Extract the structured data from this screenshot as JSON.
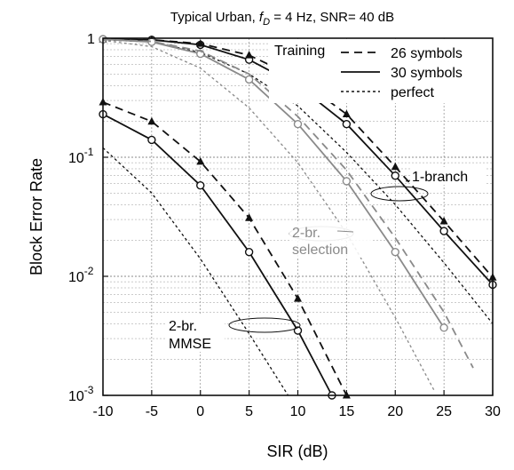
{
  "chart_data": {
    "type": "line",
    "title_parts": {
      "prefix": "Typical Urban, ",
      "f": "f",
      "sub": "D",
      "suffix": " = 4 Hz, SNR= 40 dB"
    },
    "xlabel": "SIR (dB)",
    "ylabel": "Block Error Rate",
    "xlim": [
      -10,
      30
    ],
    "ylim": [
      0.001,
      1
    ],
    "yscale": "log",
    "grid": true,
    "xticks": [
      -10,
      -5,
      0,
      5,
      10,
      15,
      20,
      25,
      30
    ],
    "xtick_labels": [
      "-10",
      "-5",
      "0",
      "5",
      "10",
      "15",
      "20",
      "25",
      "30"
    ],
    "yticks": [
      {
        "value": 1,
        "base": "1",
        "exp": ""
      },
      {
        "value": 0.1,
        "base": "10",
        "exp": "-1"
      },
      {
        "value": 0.01,
        "base": "10",
        "exp": "-2"
      },
      {
        "value": 0.001,
        "base": "10",
        "exp": "-3"
      }
    ],
    "legend": {
      "position": "top-right",
      "header": "Training",
      "entries": [
        {
          "label": "26 symbols",
          "style": "dashed"
        },
        {
          "label": "30 symbols",
          "style": "solid"
        },
        {
          "label": "perfect",
          "style": "dotted"
        }
      ]
    },
    "annotations": [
      {
        "text": "1-branch",
        "color": "#111111"
      },
      {
        "lines": [
          "2-br.",
          "selection"
        ],
        "color": "#8a8a8a"
      },
      {
        "lines": [
          "2-br.",
          "MMSE"
        ],
        "color": "#111111"
      }
    ],
    "series": [
      {
        "group": "1-branch",
        "training": "30 symbols",
        "style": "solid",
        "marker": "circle",
        "color": "#111111",
        "x": [
          -10,
          -5,
          0,
          5,
          10,
          15,
          20,
          25,
          30
        ],
        "y": [
          0.98,
          0.97,
          0.88,
          0.66,
          0.4,
          0.19,
          0.07,
          0.024,
          0.0085
        ]
      },
      {
        "group": "1-branch",
        "training": "26 symbols",
        "style": "dashed",
        "marker": "triangle",
        "color": "#111111",
        "x": [
          -10,
          -5,
          0,
          5,
          10,
          15,
          20,
          25,
          30
        ],
        "y": [
          0.98,
          0.97,
          0.9,
          0.72,
          0.46,
          0.23,
          0.083,
          0.029,
          0.0098
        ]
      },
      {
        "group": "1-branch",
        "training": "perfect",
        "style": "dotted",
        "marker": "none",
        "color": "#111111",
        "x": [
          -10,
          -5,
          0,
          5,
          10,
          15,
          20,
          25,
          30
        ],
        "y": [
          0.97,
          0.93,
          0.76,
          0.5,
          0.27,
          0.11,
          0.04,
          0.013,
          0.004
        ]
      },
      {
        "group": "2-br. selection",
        "training": "30 symbols",
        "style": "solid",
        "marker": "circle",
        "color": "#8a8a8a",
        "x": [
          -10,
          -5,
          0,
          5,
          10,
          15,
          20,
          25
        ],
        "y": [
          0.98,
          0.93,
          0.74,
          0.45,
          0.19,
          0.063,
          0.016,
          0.0037
        ]
      },
      {
        "group": "2-br. selection",
        "training": "26 symbols",
        "style": "dashed",
        "marker": "none",
        "color": "#8a8a8a",
        "x": [
          -10,
          -5,
          0,
          5,
          10,
          15,
          20,
          25,
          28
        ],
        "y": [
          0.98,
          0.94,
          0.78,
          0.5,
          0.22,
          0.078,
          0.021,
          0.005,
          0.0017
        ]
      },
      {
        "group": "2-br. selection",
        "training": "perfect",
        "style": "dotted",
        "marker": "none",
        "color": "#8a8a8a",
        "x": [
          -10,
          -5,
          0,
          5,
          10,
          15,
          20,
          24
        ],
        "y": [
          0.96,
          0.85,
          0.56,
          0.26,
          0.09,
          0.023,
          0.0045,
          0.0011
        ]
      },
      {
        "group": "2-br. MMSE",
        "training": "30 symbols",
        "style": "solid",
        "marker": "circle",
        "color": "#111111",
        "x": [
          -10,
          -5,
          0,
          5,
          10,
          13.5
        ],
        "y": [
          0.23,
          0.14,
          0.058,
          0.016,
          0.0035,
          0.001
        ]
      },
      {
        "group": "2-br. MMSE",
        "training": "26 symbols",
        "style": "dashed",
        "marker": "triangle",
        "color": "#111111",
        "x": [
          -10,
          -5,
          0,
          5,
          10,
          15
        ],
        "y": [
          0.29,
          0.2,
          0.092,
          0.031,
          0.0065,
          0.001
        ]
      },
      {
        "group": "2-br. MMSE",
        "training": "perfect",
        "style": "dotted",
        "marker": "none",
        "color": "#111111",
        "x": [
          -10,
          -5,
          0,
          5,
          9
        ],
        "y": [
          0.12,
          0.05,
          0.014,
          0.0033,
          0.001
        ]
      }
    ]
  }
}
